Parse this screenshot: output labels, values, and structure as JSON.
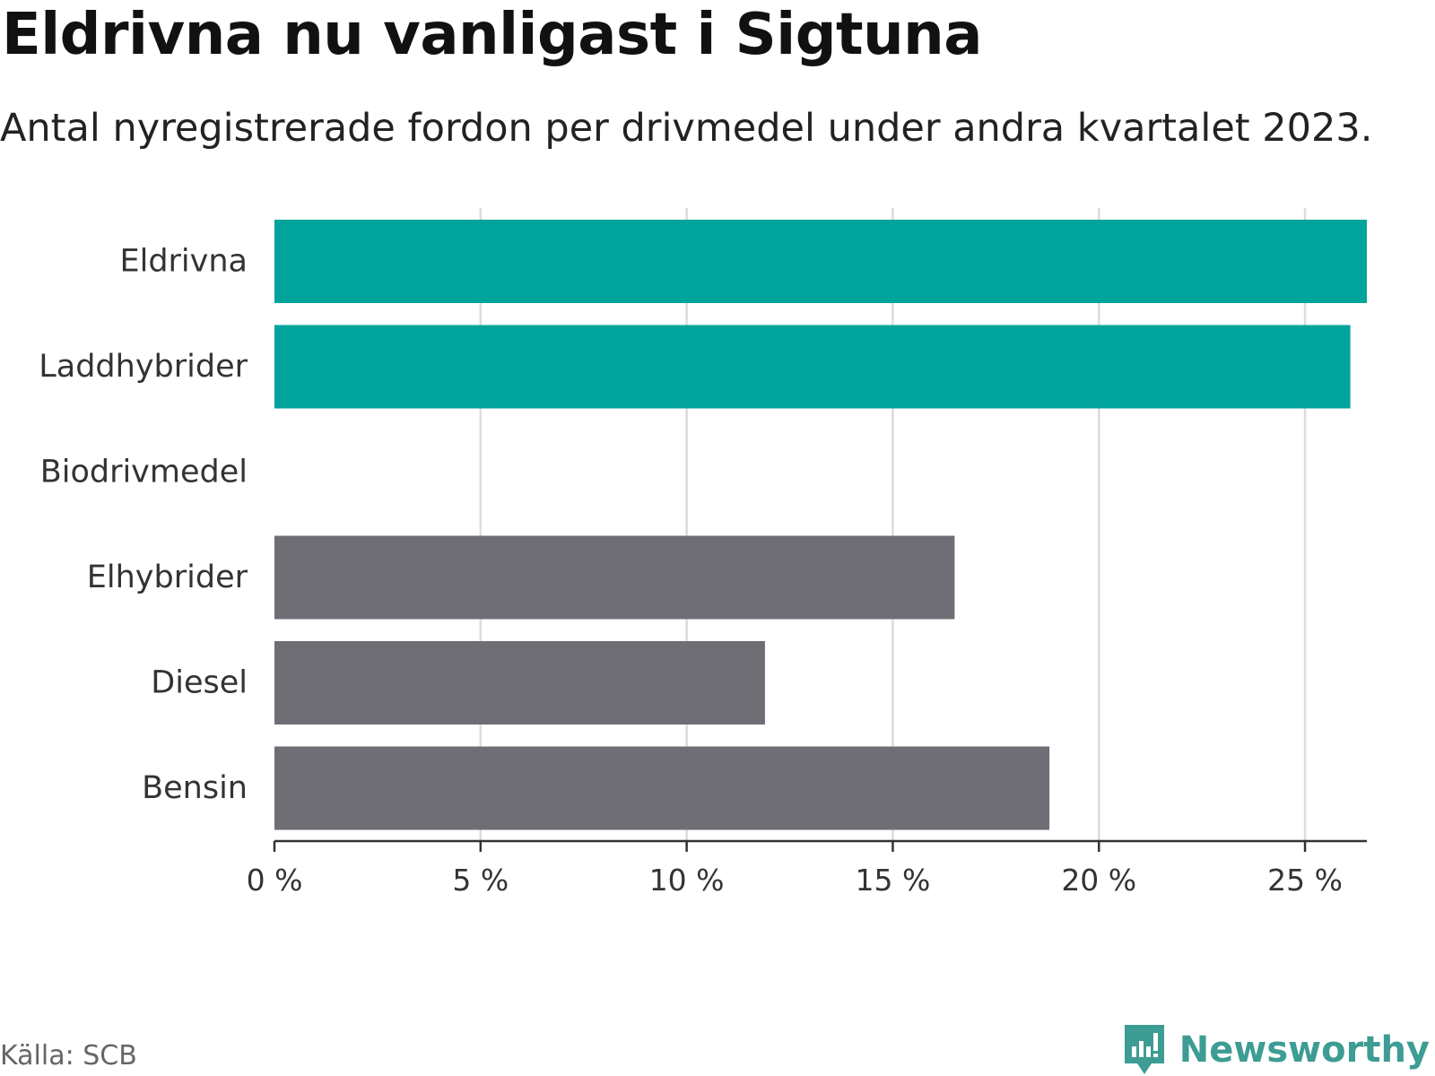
{
  "title": "Eldrivna nu vanligast i Sigtuna",
  "subtitle": "Antal nyregistrerade fordon per drivmedel under andra kvartalet 2023.",
  "source": "Källa: SCB",
  "brand": {
    "name": "Newsworthy",
    "icon": "newsworthy-logo-icon",
    "color": "#3d9c93"
  },
  "colors": {
    "highlight": "#00a49a",
    "default": "#6f6e75",
    "grid": "#dcdcdc",
    "axis": "#333333"
  },
  "chart_data": {
    "type": "bar",
    "orientation": "horizontal",
    "title": "Eldrivna nu vanligast i Sigtuna",
    "xlabel": "",
    "ylabel": "",
    "xlim": [
      0,
      26.5
    ],
    "grid": true,
    "categories": [
      "Eldrivna",
      "Laddhybrider",
      "Biodrivmedel",
      "Elhybrider",
      "Diesel",
      "Bensin"
    ],
    "values": [
      26.5,
      26.1,
      0,
      16.5,
      11.9,
      18.8
    ],
    "highlight": [
      true,
      true,
      false,
      false,
      false,
      false
    ],
    "ticks": [
      0,
      5,
      10,
      15,
      20,
      25
    ],
    "tick_labels": [
      "0 %",
      "5 %",
      "10 %",
      "15 %",
      "20 %",
      "25 %"
    ]
  }
}
